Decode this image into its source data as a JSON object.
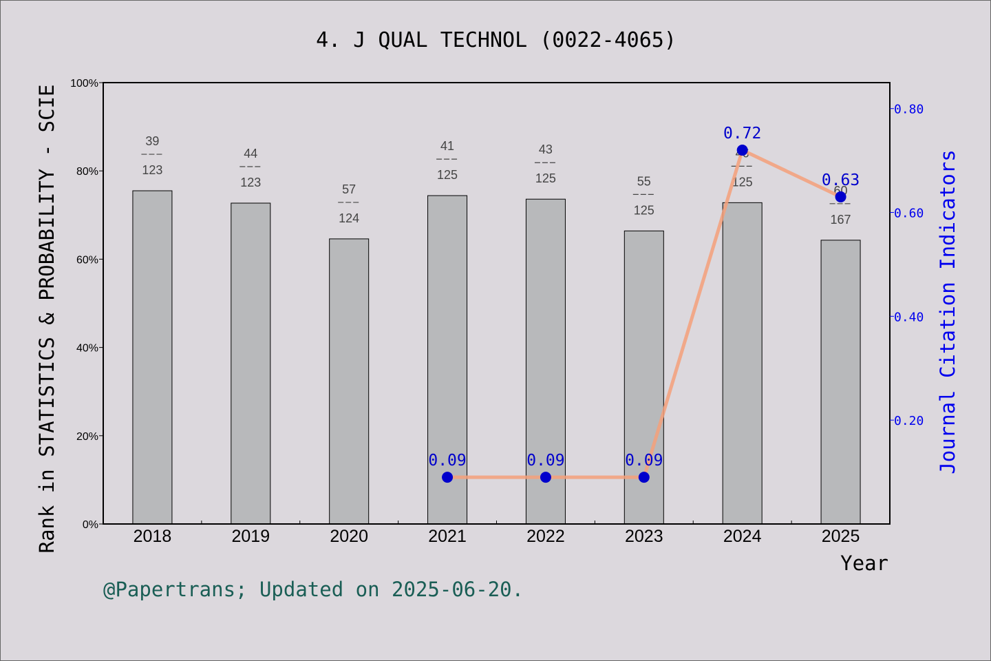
{
  "chart_data": {
    "type": "bar",
    "title": "4. J QUAL TECHNOL (0022-4065)",
    "xlabel": "Year",
    "ylabel": "Rank in STATISTICS & PROBABILITY - SCIE",
    "y2label": "Journal Citation Indicators",
    "categories": [
      "2018",
      "2019",
      "2020",
      "2021",
      "2022",
      "2023",
      "2024",
      "2025"
    ],
    "ylim": [
      0,
      100
    ],
    "y2lim": [
      0,
      0.85
    ],
    "yticks": [
      "0%",
      "20%",
      "40%",
      "60%",
      "80%",
      "100%"
    ],
    "y2ticks": [
      "0.20",
      "0.40",
      "0.60",
      "0.80"
    ],
    "series": [
      {
        "type": "bar",
        "values": [
          75.5,
          72.7,
          64.6,
          74.4,
          73.6,
          66.4,
          72.8,
          64.3
        ],
        "ranks": [
          "39",
          "44",
          "57",
          "41",
          "43",
          "55",
          "46",
          "60"
        ],
        "totals": [
          "123",
          "123",
          "124",
          "125",
          "125",
          "125",
          "125",
          "167"
        ],
        "color": "#b8b9bb"
      },
      {
        "type": "line",
        "axis": "right",
        "values": [
          null,
          null,
          null,
          0.09,
          0.09,
          0.09,
          0.72,
          0.63
        ],
        "labels": [
          "",
          "",
          "",
          "0.09",
          "0.09",
          "0.09",
          "0.72",
          "0.63"
        ],
        "line_color": "#f5a07a",
        "marker_color": "#0000cc"
      }
    ],
    "grid": false,
    "footer": "@Papertrans; Updated on 2025-06-20."
  }
}
